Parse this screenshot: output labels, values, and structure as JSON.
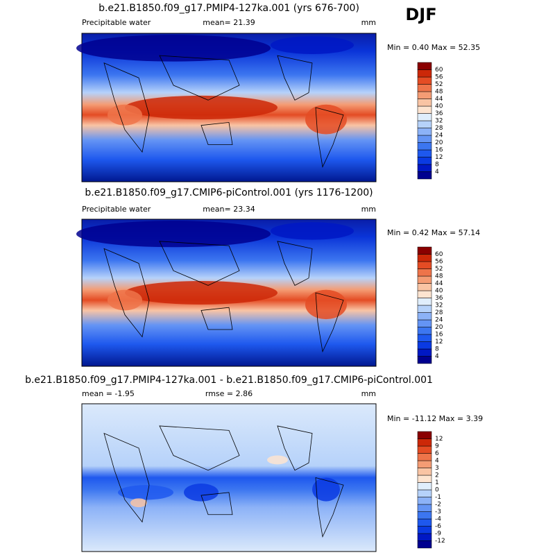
{
  "season": "DJF",
  "panels": [
    {
      "title": "b.e21.B1850.f09_g17.PMIP4-127ka.001 (yrs 676-700)",
      "left": "Precipitable water",
      "center": "mean=  21.39",
      "units": "mm",
      "minmax": "Min =  0.40 Max =  52.35",
      "colorbar": {
        "levels": [
          4,
          8,
          12,
          16,
          20,
          24,
          28,
          32,
          36,
          40,
          44,
          48,
          52,
          56,
          60
        ],
        "colors": [
          "#00008f",
          "#0018c4",
          "#0a3ae2",
          "#1e58ee",
          "#3c76f0",
          "#6494f4",
          "#8cb2f7",
          "#b6d2fa",
          "#e0eefc",
          "#fde4d0",
          "#f9c4a4",
          "#f49c74",
          "#ee744a",
          "#e44c24",
          "#cc2808",
          "#8a0000"
        ]
      }
    },
    {
      "title": "b.e21.B1850.f09_g17.CMIP6-piControl.001 (yrs 1176-1200)",
      "left": "Precipitable water",
      "center": "mean=  23.34",
      "units": "mm",
      "minmax": "Min =  0.42 Max =  57.14",
      "colorbar": {
        "levels": [
          4,
          8,
          12,
          16,
          20,
          24,
          28,
          32,
          36,
          40,
          44,
          48,
          52,
          56,
          60
        ],
        "colors": [
          "#00008f",
          "#0018c4",
          "#0a3ae2",
          "#1e58ee",
          "#3c76f0",
          "#6494f4",
          "#8cb2f7",
          "#b6d2fa",
          "#e0eefc",
          "#fde4d0",
          "#f9c4a4",
          "#f49c74",
          "#ee744a",
          "#e44c24",
          "#cc2808",
          "#8a0000"
        ]
      }
    },
    {
      "title": "b.e21.B1850.f09_g17.PMIP4-127ka.001 - b.e21.B1850.f09_g17.CMIP6-piControl.001",
      "left": "mean =  -1.95",
      "center": "rmse =  2.86",
      "units": "mm",
      "minmax": "Min = -11.12 Max =  3.39",
      "colorbar": {
        "levels": [
          -12,
          -9,
          -6,
          -4,
          -3,
          -2,
          -1,
          0,
          1,
          2,
          3,
          4,
          6,
          9,
          12
        ],
        "colors": [
          "#00008f",
          "#0018c4",
          "#0a3ae2",
          "#1e58ee",
          "#3c76f0",
          "#6494f4",
          "#8cb2f7",
          "#b6d2fa",
          "#e0eefc",
          "#fde4d0",
          "#f9c4a4",
          "#f49c74",
          "#ee744a",
          "#e44c24",
          "#cc2808",
          "#8a0000"
        ]
      }
    }
  ]
}
